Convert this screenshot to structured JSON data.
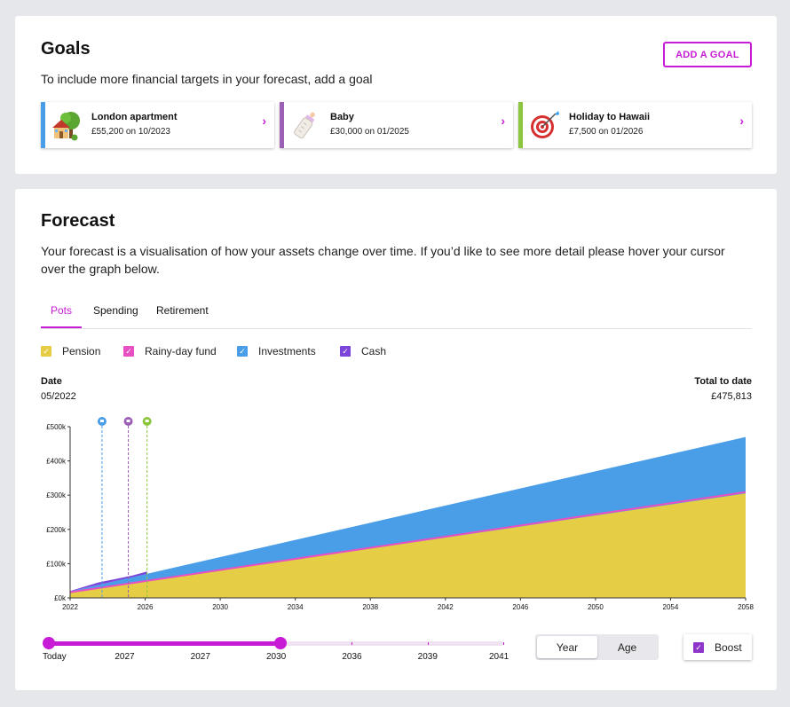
{
  "goals": {
    "title": "Goals",
    "subtitle": "To include more financial targets in your forecast, add a goal",
    "add_button": "ADD A GOAL",
    "items": [
      {
        "name": "London apartment",
        "detail": "£55,200 on 10/2023",
        "color": "#4a9ee8",
        "icon": "house-tree-icon"
      },
      {
        "name": "Baby",
        "detail": "£30,000 on 01/2025",
        "color": "#9b5fb5",
        "icon": "baby-bottle-icon"
      },
      {
        "name": "Holiday to Hawaii",
        "detail": "£7,500 on 01/2026",
        "color": "#8cc63f",
        "icon": "target-icon"
      }
    ]
  },
  "forecast": {
    "title": "Forecast",
    "subtitle_line1": "Your forecast is a visualisation of how your assets change over time. If you’d like to see more detail please hover your cursor",
    "subtitle_line2": "over the graph below.",
    "tabs": [
      "Pots",
      "Spending",
      "Retirement"
    ],
    "active_tab": "Pots",
    "legend": [
      {
        "label": "Pension",
        "color": "#e5cd45",
        "checked": true
      },
      {
        "label": "Rainy-day fund",
        "color": "#e84fc3",
        "checked": true
      },
      {
        "label": "Investments",
        "color": "#4a9ee8",
        "checked": true
      },
      {
        "label": "Cash",
        "color": "#7b45d9",
        "checked": true
      }
    ],
    "date_label": "Date",
    "date_value": "05/2022",
    "total_label": "Total to date",
    "total_value": "£475,813"
  },
  "chart_data": {
    "type": "area",
    "x": [
      2022,
      2026,
      2030,
      2034,
      2038,
      2042,
      2046,
      2050,
      2054,
      2058
    ],
    "x_tick_labels": [
      "2022",
      "2026",
      "2030",
      "2034",
      "2038",
      "2042",
      "2046",
      "2050",
      "2054",
      "2058"
    ],
    "y_tick_labels": [
      "£0k",
      "£100k",
      "£200k",
      "£300k",
      "£400k",
      "£500k"
    ],
    "ylim": [
      0,
      500000
    ],
    "xlim": [
      2022,
      2058
    ],
    "series": [
      {
        "name": "Pension",
        "color": "#e5cd45",
        "x": [
          2022,
          2058
        ],
        "values": [
          15000,
          305000
        ]
      },
      {
        "name": "Rainy-day fund",
        "color": "#e84fc3",
        "x": [
          2022,
          2058
        ],
        "values": [
          16500,
          309000
        ]
      },
      {
        "name": "Investments",
        "color": "#4a9ee8",
        "x": [
          2022,
          2058
        ],
        "values": [
          19000,
          470000
        ]
      },
      {
        "name": "Cash",
        "color": "#7b45d9",
        "x": [
          2022,
          2023.5,
          2025.3,
          2026.1
        ],
        "values": [
          20000,
          45000,
          65000,
          77000
        ]
      }
    ],
    "goal_markers": [
      {
        "x": 2023.7,
        "color": "#4a9ee8"
      },
      {
        "x": 2025.1,
        "color": "#9b5fb5"
      },
      {
        "x": 2026.1,
        "color": "#8cc63f"
      }
    ],
    "grid": false
  },
  "slider": {
    "labels": [
      "Today",
      "2027",
      "2027",
      "2030",
      "2036",
      "2039",
      "2041"
    ],
    "start_fraction": 0.0,
    "end_fraction": 0.51,
    "active_color": "#c71bd6"
  },
  "toggle": {
    "options": [
      "Year",
      "Age"
    ],
    "selected": "Year"
  },
  "boost": {
    "label": "Boost",
    "checked": true
  }
}
